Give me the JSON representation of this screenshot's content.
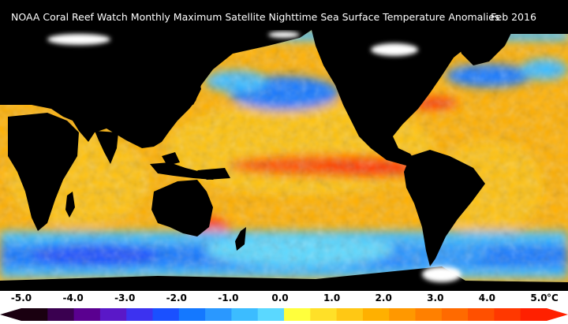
{
  "title": "NOAA Coral Reef Watch Monthly Maximum Satellite Nighttime Sea Surface Temperature Anomalies",
  "date": "Feb 2016",
  "legend": {
    "ticks": [
      "-5.0",
      "-4.0",
      "-3.0",
      "-2.0",
      "-1.0",
      "0.0",
      "1.0",
      "2.0",
      "3.0",
      "4.0",
      "5.0"
    ],
    "unit": "°C",
    "colors": [
      "#1a0010",
      "#3a0050",
      "#5a0090",
      "#5a18c8",
      "#3c32f0",
      "#1a50ff",
      "#1478ff",
      "#2a98ff",
      "#3cbcff",
      "#5ad8ff",
      "#ffff3c",
      "#ffe028",
      "#ffc814",
      "#ffb000",
      "#ff9800",
      "#ff8000",
      "#ff6a00",
      "#ff5000",
      "#ff3800",
      "#ff2000"
    ]
  },
  "colors": {
    "land": "#000000",
    "ice": "#ffffff",
    "ocean_base": "#ffb000"
  }
}
